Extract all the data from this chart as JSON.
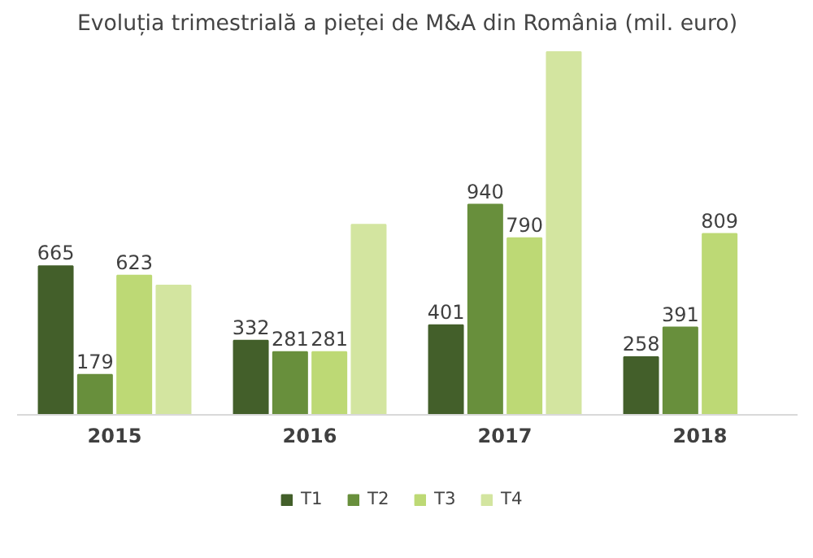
{
  "chart_data": {
    "type": "bar",
    "title": "Evoluția trimestrială a pieței de M&A din România (mil. euro)",
    "categories": [
      "2015",
      "2016",
      "2017",
      "2018"
    ],
    "series": [
      {
        "name": "T1",
        "color": "#435f2a",
        "values": [
          665,
          332,
          401,
          258
        ],
        "value_labels": [
          "665",
          "332",
          "401",
          "258"
        ]
      },
      {
        "name": "T2",
        "color": "#688f3c",
        "values": [
          179,
          281,
          940,
          391
        ],
        "value_labels": [
          "179",
          "281",
          "940",
          "391"
        ]
      },
      {
        "name": "T3",
        "color": "#bdd975",
        "values": [
          623,
          281,
          790,
          809
        ],
        "value_labels": [
          "623",
          "281",
          "790",
          "809"
        ]
      },
      {
        "name": "T4",
        "color": "#d3e5a0",
        "values": [
          578,
          850,
          1622,
          null
        ],
        "value_labels": [
          null,
          null,
          null,
          null
        ]
      }
    ],
    "legend": "bottom"
  }
}
